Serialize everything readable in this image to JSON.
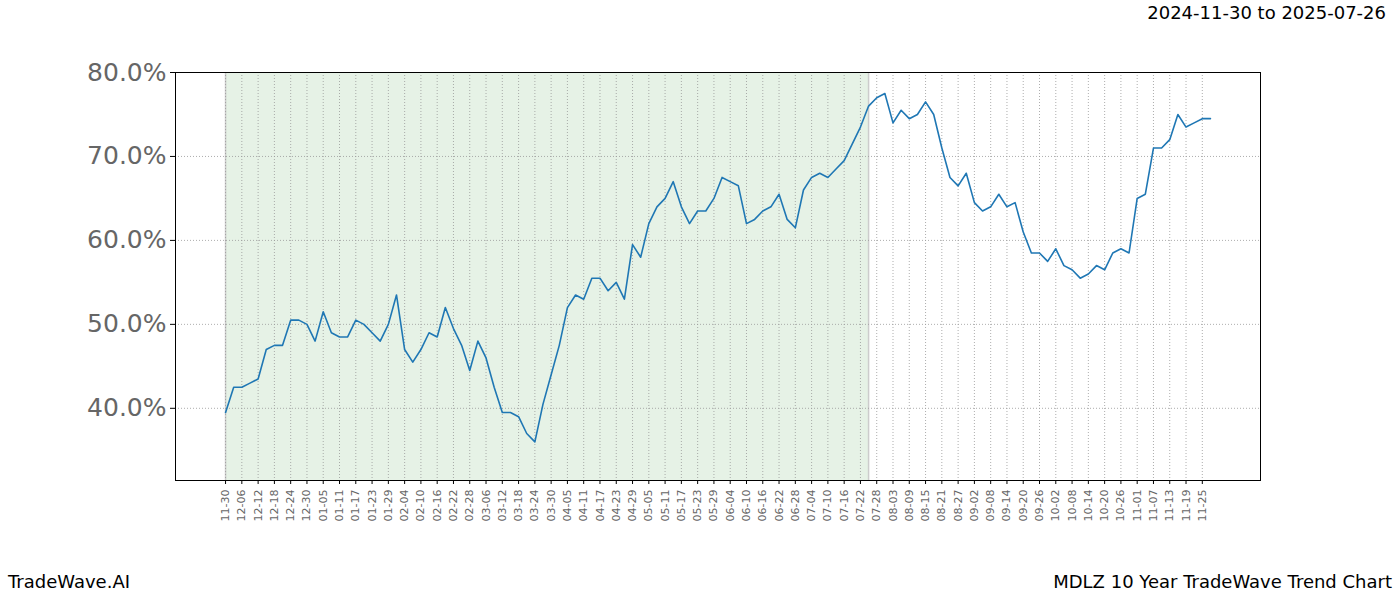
{
  "chart_data": {
    "type": "line",
    "title": "MDLZ 10 Year TradeWave Trend Chart",
    "subtitle": "2024-11-30 to 2025-07-26",
    "caption": "TradeWave.AI",
    "categories": [
      "11-30",
      null,
      "12-06",
      null,
      "12-12",
      null,
      "12-18",
      null,
      "12-24",
      null,
      "12-30",
      null,
      "01-05",
      null,
      "01-11",
      null,
      "01-17",
      null,
      "01-23",
      null,
      "01-29",
      null,
      "02-04",
      null,
      "02-10",
      null,
      "02-16",
      null,
      "02-22",
      null,
      "02-28",
      null,
      "03-06",
      null,
      "03-12",
      null,
      "03-18",
      null,
      "03-24",
      null,
      "03-30",
      null,
      "04-05",
      null,
      "04-11",
      null,
      "04-17",
      null,
      "04-23",
      null,
      "04-29",
      null,
      "05-05",
      null,
      "05-11",
      null,
      "05-17",
      null,
      "05-23",
      null,
      "05-29",
      null,
      "06-04",
      null,
      "06-10",
      null,
      "06-16",
      null,
      "06-22",
      null,
      "06-28",
      null,
      "07-04",
      null,
      "07-10",
      null,
      "07-16",
      null,
      "07-22",
      null,
      "07-28",
      null,
      "08-03",
      null,
      "08-09",
      null,
      "08-15",
      null,
      "08-21",
      null,
      "08-27",
      null,
      "09-02",
      null,
      "09-08",
      null,
      "09-14",
      null,
      "09-20",
      null,
      "09-26",
      null,
      "10-02",
      null,
      "10-08",
      null,
      "10-14",
      null,
      "10-20",
      null,
      "10-26",
      null,
      "11-01",
      null,
      "11-07",
      null,
      "11-13",
      null,
      "11-19",
      null,
      "11-25",
      null
    ],
    "values": [
      39.5,
      42.5,
      42.5,
      43,
      43.5,
      47,
      47.5,
      47.5,
      50.5,
      50.5,
      50,
      48,
      51.5,
      49,
      48.5,
      48.5,
      50.5,
      50,
      49,
      48,
      50,
      53.5,
      47,
      45.5,
      47,
      49,
      48.5,
      52,
      49.5,
      47.5,
      44.5,
      48,
      46,
      42.5,
      39.5,
      39.5,
      39,
      37,
      36,
      40.5,
      44,
      47.5,
      52,
      53.5,
      53,
      55.5,
      55.5,
      54,
      55,
      53,
      59.5,
      58,
      62,
      64,
      65,
      67,
      64,
      62,
      63.5,
      63.5,
      65,
      67.5,
      67,
      66.5,
      62,
      62.5,
      63.5,
      64,
      65.5,
      62.5,
      61.5,
      66,
      67.5,
      68,
      67.5,
      68.5,
      69.5,
      71.5,
      73.5,
      76,
      77,
      77.5,
      74,
      75.5,
      74.5,
      75,
      76.5,
      75,
      71,
      67.5,
      66.5,
      68,
      64.5,
      63.5,
      64,
      65.5,
      64,
      64.5,
      61,
      58.5,
      58.5,
      57.5,
      59,
      57,
      56.5,
      55.5,
      56,
      57,
      56.5,
      58.5,
      59,
      58.5,
      65,
      65.5,
      71,
      71,
      72,
      75,
      73.5,
      74,
      74.5,
      74.5
    ],
    "color": "#1f77b4",
    "highlight": [
      0,
      79
    ],
    "ylim": [
      31.4,
      80
    ],
    "yticks": [
      {
        "value": 40,
        "label": "40.0%"
      },
      {
        "value": 50,
        "label": "50.0%"
      },
      {
        "value": 60,
        "label": "60.0%"
      },
      {
        "value": 70,
        "label": "70.0%"
      },
      {
        "value": 80,
        "label": "80.0%"
      }
    ],
    "grid": true
  }
}
